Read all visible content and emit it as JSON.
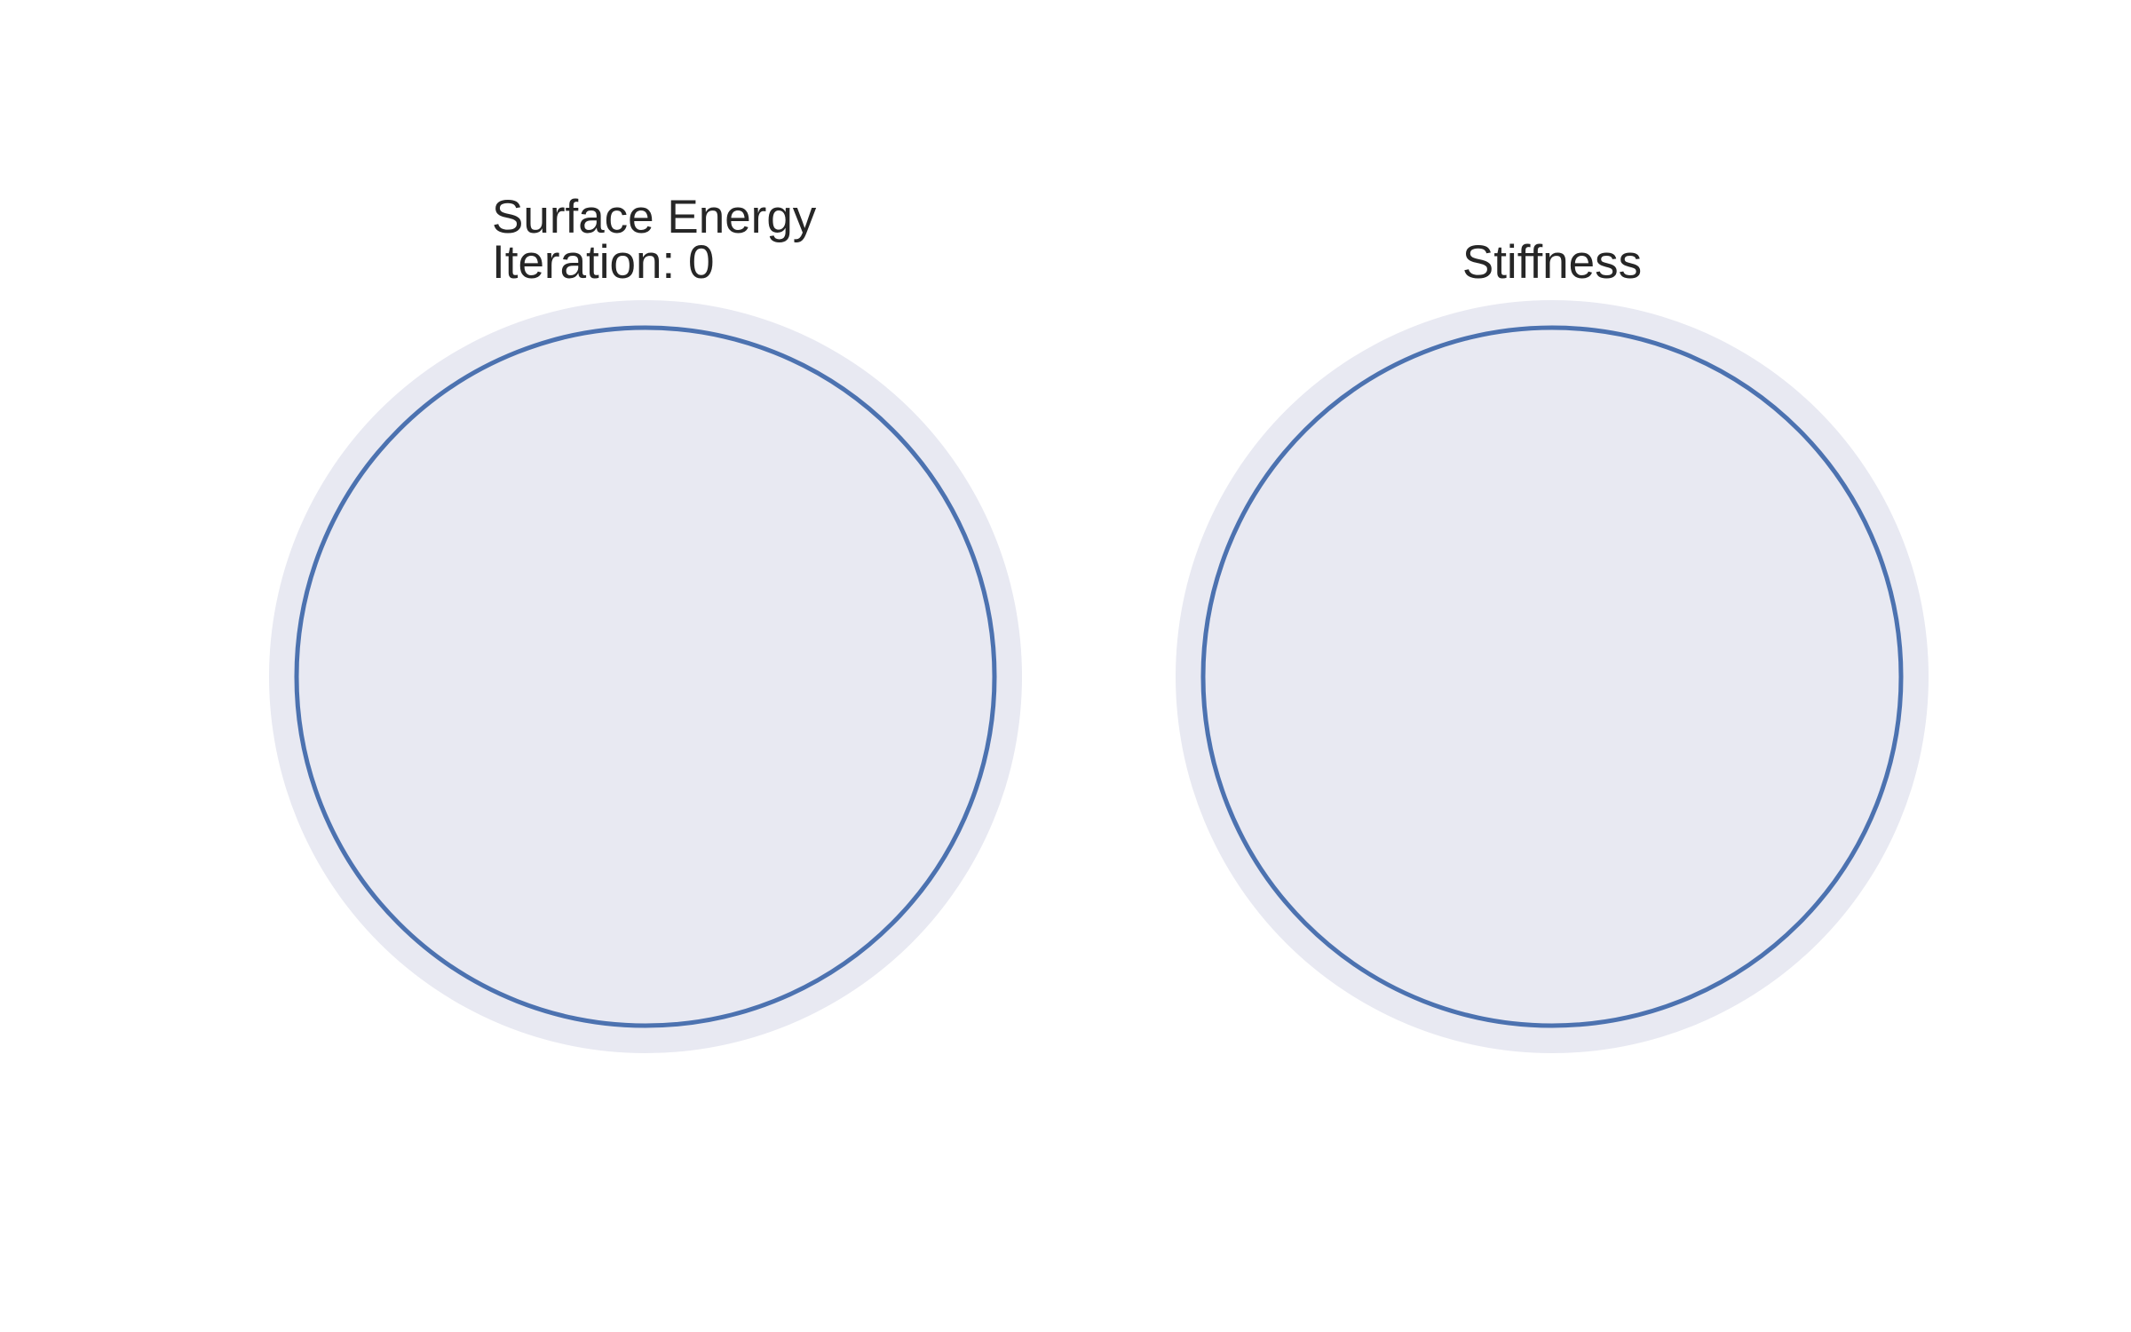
{
  "chart_data": [
    {
      "type": "polar",
      "title_lines": [
        "Surface Energy",
        "Iteration: 0"
      ],
      "series": [
        {
          "r_normalized": 1.0,
          "color": "#4c72b0"
        }
      ],
      "colors": {
        "axes_background": "#e8e9f2",
        "line": "#4c72b0"
      },
      "grid": false,
      "tick_labels": false,
      "legend": "none"
    },
    {
      "type": "polar",
      "title_lines": [
        "Stiffness"
      ],
      "series": [
        {
          "r_normalized": 1.0,
          "color": "#4c72b0"
        }
      ],
      "colors": {
        "axes_background": "#e8e9f2",
        "line": "#4c72b0"
      },
      "grid": false,
      "tick_labels": false,
      "legend": "none"
    }
  ]
}
